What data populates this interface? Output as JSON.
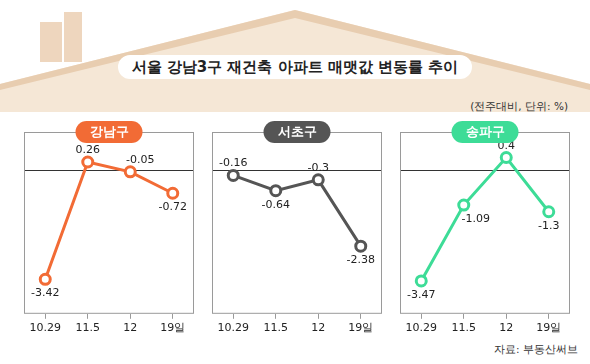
{
  "title": "서울 강남3구 재건축 아파트 매맷값 변동률 추이",
  "note": "(전주대비, 단위: %)",
  "source": "자료: 부동산써브",
  "chart_data": [
    {
      "type": "line",
      "title": "강남구",
      "categories": [
        "10.29",
        "11.5",
        "12",
        "19일"
      ],
      "values": [
        -3.42,
        0.26,
        -0.05,
        -0.72
      ],
      "color": "#f26b35",
      "ylim": [
        -4.5,
        1.2
      ],
      "yticks": [
        0
      ],
      "grid": true,
      "data_labels": true,
      "tick_labels": "x",
      "marker": "circle"
    },
    {
      "type": "line",
      "title": "서초구",
      "categories": [
        "10.29",
        "11.5",
        "12",
        "19일"
      ],
      "values": [
        -0.16,
        -0.64,
        -0.3,
        -2.38
      ],
      "color": "#555555",
      "ylim": [
        -4.5,
        1.2
      ],
      "yticks": [
        0
      ],
      "grid": true,
      "data_labels": true,
      "tick_labels": "x",
      "marker": "circle"
    },
    {
      "type": "line",
      "title": "송파구",
      "categories": [
        "10.29",
        "11.5",
        "12",
        "19일"
      ],
      "values": [
        -3.47,
        -1.09,
        0.4,
        -1.3
      ],
      "color": "#3ddc97",
      "ylim": [
        -4.5,
        1.2
      ],
      "yticks": [
        0
      ],
      "grid": true,
      "data_labels": true,
      "tick_labels": "x",
      "marker": "circle"
    }
  ]
}
